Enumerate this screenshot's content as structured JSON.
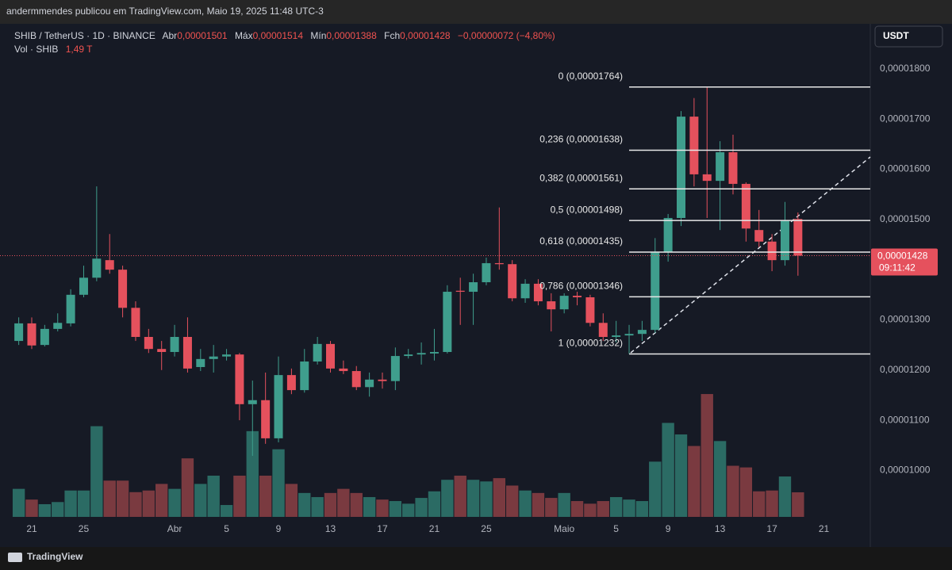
{
  "header": {
    "author_line": "andermmendes publicou em TradingView.com, Maio 19, 2025 11:48 UTC-3",
    "symbol": "SHIB / TetherUS · 1D · BINANCE",
    "open_label": "Abr",
    "open": "0,00001501",
    "high_label": "Máx",
    "high": "0,00001514",
    "low_label": "Mín",
    "low": "0,00001388",
    "close_label": "Fch",
    "close": "0,00001428",
    "change": "−0,00000072 (−4,80%)",
    "volume_label": "Vol · SHIB",
    "volume": "1,49 T"
  },
  "currency": "USDT",
  "price_tag": {
    "value": 1.428e-05,
    "label": "0,00001428",
    "countdown": "09:11:42"
  },
  "brand": "TradingView",
  "chart_data": {
    "type": "candlestick",
    "categories": [
      null,
      "21",
      null,
      null,
      null,
      "25",
      null,
      null,
      null,
      null,
      null,
      null,
      "Abr",
      null,
      null,
      null,
      "5",
      null,
      null,
      null,
      "9",
      null,
      null,
      null,
      "13",
      null,
      null,
      null,
      "17",
      null,
      null,
      null,
      "21",
      null,
      null,
      null,
      "25",
      null,
      null,
      null,
      null,
      null,
      "Maio",
      null,
      null,
      null,
      "5",
      null,
      null,
      null,
      "9",
      null,
      null,
      null,
      "13",
      null,
      null,
      null,
      "17",
      null,
      null,
      null,
      "21"
    ],
    "open": [
      1.258e-05,
      1.293e-05,
      1.25e-05,
      1.282e-05,
      1.293e-05,
      1.35e-05,
      1.384e-05,
      1.419e-05,
      1.4e-05,
      1.324e-05,
      1.266e-05,
      1.242e-05,
      1.236e-05,
      1.266e-05,
      1.206e-05,
      1.222e-05,
      1.227e-05,
      1.231e-05,
      1.132e-05,
      1.14e-05,
      1.064e-05,
      1.19e-05,
      1.16e-05,
      1.217e-05,
      1.252e-05,
      1.203e-05,
      1.198e-05,
      1.166e-05,
      1.181e-05,
      1.178e-05,
      1.228e-05,
      1.231e-05,
      1.233e-05,
      1.236e-05,
      1.358e-05,
      1.356e-05,
      1.375e-05,
      1.413e-05,
      1.411e-05,
      1.343e-05,
      1.372e-05,
      1.337e-05,
      1.321e-05,
      1.348e-05,
      1.345e-05,
      1.294e-05,
      1.266e-05,
      1.269e-05,
      1.272e-05,
      1.28e-05,
      1.435e-05,
      1.503e-05,
      1.705e-05,
      1.59e-05,
      1.577e-05,
      1.634e-05,
      1.571e-05,
      1.479e-05,
      1.456e-05,
      1.419e-05,
      1.501e-05,
      null,
      null
    ],
    "high": [
      1.305e-05,
      1.305e-05,
      1.29e-05,
      1.313e-05,
      1.361e-05,
      1.408e-05,
      1.566e-05,
      1.471e-05,
      1.408e-05,
      1.337e-05,
      1.282e-05,
      1.258e-05,
      1.29e-05,
      1.305e-05,
      1.242e-05,
      1.25e-05,
      1.242e-05,
      1.234e-05,
      1.179e-05,
      1.195e-05,
      1.227e-05,
      1.203e-05,
      1.242e-05,
      1.266e-05,
      1.258e-05,
      1.219e-05,
      1.208e-05,
      1.195e-05,
      1.195e-05,
      1.245e-05,
      1.242e-05,
      1.255e-05,
      1.282e-05,
      1.369e-05,
      1.384e-05,
      1.392e-05,
      1.424e-05,
      1.524e-05,
      1.419e-05,
      1.381e-05,
      1.381e-05,
      1.353e-05,
      1.353e-05,
      1.356e-05,
      1.35e-05,
      1.313e-05,
      1.298e-05,
      1.29e-05,
      1.298e-05,
      1.463e-05,
      1.511e-05,
      1.716e-05,
      1.742e-05,
      1.764e-05,
      1.656e-05,
      1.669e-05,
      1.574e-05,
      1.519e-05,
      1.471e-05,
      1.535e-05,
      1.514e-05,
      null,
      null
    ],
    "low": [
      1.25e-05,
      1.242e-05,
      1.247e-05,
      1.277e-05,
      1.287e-05,
      1.345e-05,
      1.377e-05,
      1.392e-05,
      1.305e-05,
      1.258e-05,
      1.234e-05,
      1.2e-05,
      1.227e-05,
      1.195e-05,
      1.198e-05,
      1.195e-05,
      1.219e-05,
      1.1e-05,
      1.029e-05,
      1.053e-05,
      1.056e-05,
      1.152e-05,
      1.155e-05,
      1.211e-05,
      1.195e-05,
      1.192e-05,
      1.16e-05,
      1.147e-05,
      1.163e-05,
      1.16e-05,
      1.223e-05,
      1.211e-05,
      1.219e-05,
      1.233e-05,
      1.29e-05,
      1.29e-05,
      1.369e-05,
      1.4e-05,
      1.337e-05,
      1.334e-05,
      1.329e-05,
      1.277e-05,
      1.313e-05,
      1.329e-05,
      1.287e-05,
      1.258e-05,
      1.255e-05,
      1.232e-05,
      1.258e-05,
      1.274e-05,
      1.416e-05,
      1.487e-05,
      1.566e-05,
      1.503e-05,
      1.479e-05,
      1.55e-05,
      1.456e-05,
      1.445e-05,
      1.397e-05,
      1.408e-05,
      1.388e-05,
      null,
      null
    ],
    "close": [
      1.293e-05,
      1.249e-05,
      1.282e-05,
      1.294e-05,
      1.35e-05,
      1.384e-05,
      1.422e-05,
      1.4e-05,
      1.324e-05,
      1.266e-05,
      1.242e-05,
      1.236e-05,
      1.266e-05,
      1.203e-05,
      1.222e-05,
      1.227e-05,
      1.231e-05,
      1.132e-05,
      1.14e-05,
      1.064e-05,
      1.19e-05,
      1.16e-05,
      1.217e-05,
      1.252e-05,
      1.203e-05,
      1.198e-05,
      1.166e-05,
      1.181e-05,
      1.178e-05,
      1.228e-05,
      1.231e-05,
      1.234e-05,
      1.236e-05,
      1.356e-05,
      1.356e-05,
      1.375e-05,
      1.413e-05,
      1.411e-05,
      1.343e-05,
      1.372e-05,
      1.337e-05,
      1.321e-05,
      1.348e-05,
      1.345e-05,
      1.294e-05,
      1.266e-05,
      1.269e-05,
      1.272e-05,
      1.28e-05,
      1.435e-05,
      1.503e-05,
      1.705e-05,
      1.59e-05,
      1.577e-05,
      1.634e-05,
      1.571e-05,
      1.482e-05,
      1.456e-05,
      1.419e-05,
      1.498e-05,
      1.428e-05,
      null,
      null
    ],
    "volume": [
      1.7,
      1.05,
      0.77,
      0.9,
      1.6,
      1.6,
      5.5,
      2.2,
      2.2,
      1.5,
      1.6,
      2.0,
      1.7,
      3.55,
      2.0,
      2.5,
      0.72,
      2.5,
      5.2,
      2.5,
      4.1,
      2.0,
      1.45,
      1.2,
      1.45,
      1.7,
      1.45,
      1.2,
      1.05,
      0.96,
      0.8,
      1.15,
      1.55,
      2.25,
      2.5,
      2.25,
      2.15,
      2.35,
      1.9,
      1.6,
      1.45,
      1.15,
      1.45,
      0.96,
      0.8,
      0.96,
      1.2,
      1.05,
      0.96,
      3.35,
      5.7,
      5.0,
      4.3,
      7.45,
      4.6,
      3.1,
      3.0,
      1.55,
      1.6,
      2.45,
      1.49,
      null,
      null
    ],
    "up_color": "#3f9e8d",
    "down_color": "#e5515d",
    "volume_up_color": "#2b6b64",
    "volume_down_color": "#7a3a40",
    "ylim": [
      9.074e-06,
      1.89e-05
    ],
    "yticks": [
      {
        "value": 1.8e-05,
        "label": "0,00001800"
      },
      {
        "value": 1.7e-05,
        "label": "0,00001700"
      },
      {
        "value": 1.6e-05,
        "label": "0,00001600"
      },
      {
        "value": 1.5e-05,
        "label": "0,00001500"
      },
      {
        "value": 1.3e-05,
        "label": "0,00001300"
      },
      {
        "value": 1.2e-05,
        "label": "0,00001200"
      },
      {
        "value": 1.1e-05,
        "label": "0,00001100"
      },
      {
        "value": 1e-05,
        "label": "0,00001000"
      }
    ],
    "grid": false,
    "fib_levels": [
      {
        "value": 1.764e-05,
        "label": "0 (0,00001764)"
      },
      {
        "value": 1.638e-05,
        "label": "0,236 (0,00001638)"
      },
      {
        "value": 1.561e-05,
        "label": "0,382 (0,00001561)"
      },
      {
        "value": 1.498e-05,
        "label": "0,5 (0,00001498)"
      },
      {
        "value": 1.435e-05,
        "label": "0,618 (0,00001435)"
      },
      {
        "value": 1.346e-05,
        "label": "0,786 (0,00001346)"
      },
      {
        "value": 1.232e-05,
        "label": "1 (0,00001232)"
      }
    ]
  }
}
